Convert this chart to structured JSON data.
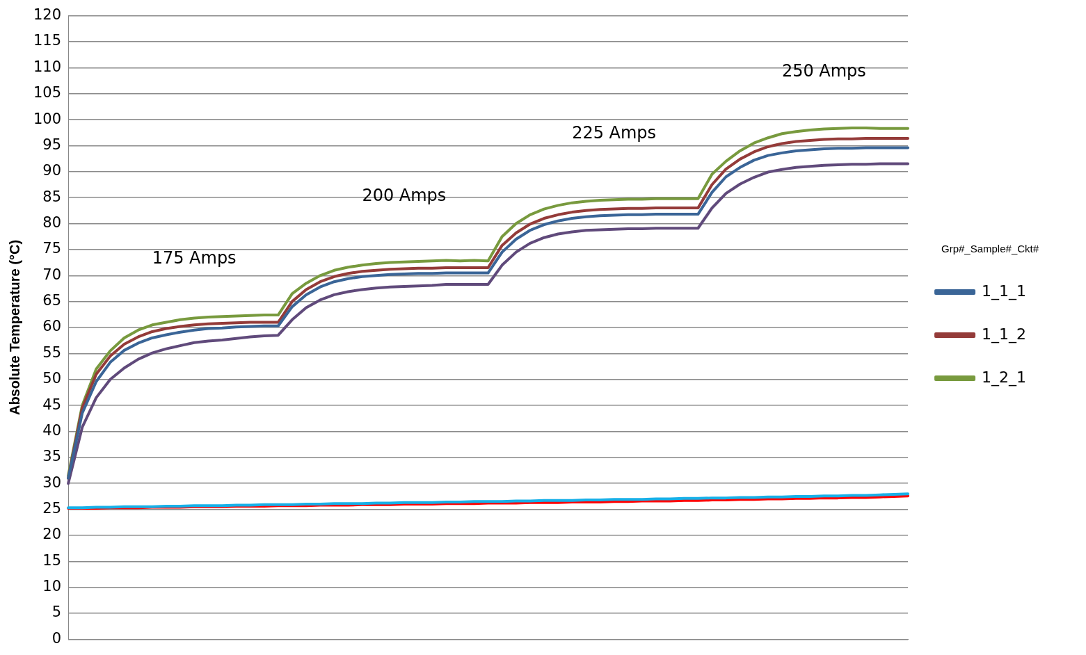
{
  "chart_data": {
    "type": "line",
    "ylabel": "Absolute Temperature (°C)",
    "legend_title": "Grp#_Sample#_Ckt#",
    "legend": "right",
    "grid": "y",
    "tick_labels": "y",
    "marker": "none",
    "line_style": "solid",
    "categories": [
      null,
      null,
      null,
      null,
      null,
      null,
      null,
      null,
      null,
      null,
      null,
      null,
      null,
      null,
      null,
      null,
      null,
      null,
      null,
      null,
      null,
      null,
      null,
      null,
      null,
      null,
      null,
      null,
      null,
      null,
      null,
      null,
      null,
      null,
      null,
      null,
      null,
      null,
      null,
      null,
      null,
      null,
      null,
      null,
      null,
      null,
      null,
      null,
      null,
      null,
      null,
      null,
      null,
      null,
      null,
      null,
      null,
      null,
      null,
      null,
      null
    ],
    "ylim": [
      0,
      120
    ],
    "yticks": [
      0,
      5,
      10,
      15,
      20,
      25,
      30,
      35,
      40,
      45,
      50,
      55,
      60,
      65,
      70,
      75,
      80,
      85,
      90,
      95,
      100,
      105,
      110,
      115,
      120
    ],
    "series": [
      {
        "name": "1_1_1",
        "color": "#3a6597",
        "values": [
          31,
          43.5,
          49.6,
          53.3,
          55.6,
          57,
          58,
          58.6,
          59.1,
          59.5,
          59.8,
          59.9,
          60.1,
          60.2,
          60.3,
          60.3,
          64,
          66.3,
          67.8,
          68.8,
          69.4,
          69.8,
          70,
          70.2,
          70.3,
          70.4,
          70.4,
          70.5,
          70.5,
          70.5,
          70.5,
          74.5,
          77,
          78.7,
          79.8,
          80.5,
          81,
          81.3,
          81.5,
          81.6,
          81.7,
          81.7,
          81.8,
          81.8,
          81.8,
          81.8,
          86,
          89,
          90.8,
          92.2,
          93.1,
          93.6,
          94,
          94.2,
          94.4,
          94.5,
          94.5,
          94.6,
          94.6,
          94.6,
          94.6
        ]
      },
      {
        "name": "1_1_2",
        "color": "#943b39",
        "values": [
          31,
          44.5,
          51,
          54.5,
          56.8,
          58.2,
          59.2,
          59.8,
          60.2,
          60.5,
          60.7,
          60.8,
          60.9,
          61,
          61,
          61,
          65,
          67.3,
          68.8,
          69.8,
          70.4,
          70.8,
          71,
          71.2,
          71.3,
          71.4,
          71.4,
          71.5,
          71.5,
          71.5,
          71.5,
          75.8,
          78.2,
          79.9,
          81,
          81.7,
          82.2,
          82.5,
          82.7,
          82.8,
          82.9,
          82.9,
          83,
          83,
          83,
          83,
          87.5,
          90.5,
          92.4,
          93.8,
          94.8,
          95.4,
          95.8,
          96,
          96.2,
          96.3,
          96.3,
          96.4,
          96.4,
          96.4,
          96.4
        ]
      },
      {
        "name": "1_2_1",
        "color": "#789a3e",
        "values": [
          31.5,
          45,
          52,
          55.5,
          58,
          59.5,
          60.5,
          61,
          61.5,
          61.8,
          62,
          62.1,
          62.2,
          62.3,
          62.4,
          62.4,
          66.5,
          68.5,
          70,
          71,
          71.6,
          72,
          72.3,
          72.5,
          72.6,
          72.7,
          72.8,
          72.9,
          72.8,
          72.9,
          72.8,
          77.5,
          80,
          81.7,
          82.8,
          83.5,
          84,
          84.3,
          84.5,
          84.6,
          84.7,
          84.7,
          84.8,
          84.8,
          84.8,
          84.8,
          89.5,
          92,
          94,
          95.5,
          96.5,
          97.3,
          97.7,
          98,
          98.2,
          98.3,
          98.4,
          98.4,
          98.3,
          98.3,
          98.3
        ]
      },
      {
        "color": "#604a7b",
        "values": [
          30,
          40.8,
          46.5,
          50,
          52.2,
          53.9,
          55.1,
          55.9,
          56.5,
          57.1,
          57.4,
          57.6,
          57.9,
          58.2,
          58.4,
          58.5,
          61.5,
          63.8,
          65.3,
          66.3,
          66.9,
          67.3,
          67.6,
          67.8,
          67.9,
          68,
          68.1,
          68.3,
          68.3,
          68.3,
          68.3,
          72,
          74.5,
          76.2,
          77.3,
          78,
          78.4,
          78.7,
          78.8,
          78.9,
          79,
          79,
          79.1,
          79.1,
          79.1,
          79.1,
          83,
          85.8,
          87.6,
          88.9,
          89.9,
          90.4,
          90.8,
          91,
          91.2,
          91.3,
          91.4,
          91.4,
          91.5,
          91.5,
          91.5
        ]
      },
      {
        "color": "#17b0e8",
        "values": [
          25.3,
          25.3,
          25.4,
          25.4,
          25.5,
          25.5,
          25.5,
          25.6,
          25.6,
          25.7,
          25.7,
          25.7,
          25.8,
          25.8,
          25.9,
          25.9,
          25.9,
          26.0,
          26.0,
          26.1,
          26.1,
          26.1,
          26.2,
          26.2,
          26.3,
          26.3,
          26.3,
          26.4,
          26.4,
          26.5,
          26.5,
          26.5,
          26.6,
          26.6,
          26.7,
          26.7,
          26.7,
          26.8,
          26.8,
          26.9,
          26.9,
          26.9,
          27.0,
          27.0,
          27.1,
          27.1,
          27.2,
          27.2,
          27.3,
          27.3,
          27.4,
          27.4,
          27.5,
          27.5,
          27.6,
          27.6,
          27.7,
          27.7,
          27.8,
          27.9,
          28.0
        ]
      },
      {
        "color": "#ff0000",
        "values": [
          25.2,
          25.2,
          25.2,
          25.3,
          25.3,
          25.3,
          25.4,
          25.4,
          25.4,
          25.5,
          25.5,
          25.5,
          25.6,
          25.6,
          25.6,
          25.7,
          25.7,
          25.7,
          25.8,
          25.8,
          25.8,
          25.9,
          25.9,
          25.9,
          26.0,
          26.0,
          26.0,
          26.1,
          26.1,
          26.1,
          26.2,
          26.2,
          26.2,
          26.3,
          26.3,
          26.3,
          26.4,
          26.4,
          26.4,
          26.5,
          26.5,
          26.6,
          26.6,
          26.6,
          26.7,
          26.7,
          26.8,
          26.8,
          26.9,
          26.9,
          27.0,
          27.0,
          27.1,
          27.1,
          27.2,
          27.2,
          27.3,
          27.3,
          27.4,
          27.5,
          27.6
        ]
      }
    ],
    "annotations": [
      "175 Amps",
      "200 Amps",
      "225 Amps",
      "250 Amps"
    ]
  }
}
